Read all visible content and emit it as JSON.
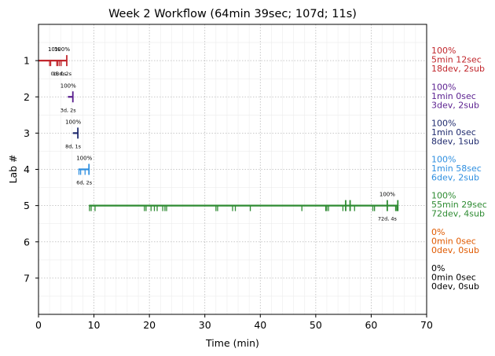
{
  "chart_data": {
    "type": "timeline",
    "title": "Week 2 Workflow (64min 39sec; 107d; 11s)",
    "xlabel": "Time (min)",
    "ylabel": "Lab #",
    "xlim": [
      0,
      70
    ],
    "ylim": [
      8,
      0
    ],
    "xticks": [
      0,
      10,
      20,
      30,
      40,
      50,
      60,
      70
    ],
    "yticks": [
      1,
      2,
      3,
      4,
      5,
      6,
      7
    ],
    "grid": true,
    "labs": [
      {
        "lab": 1,
        "color": "#c1272d",
        "start": 0.0,
        "end": 5.2,
        "pct_label": "100%",
        "pct_label_2": "10%",
        "count_label": "18d, 2s",
        "count_label_2": "0d, 0s",
        "dev_ticks": [
          2.0,
          2.2,
          3.3,
          3.5,
          3.8,
          4.1
        ],
        "sub_ticks": [
          5.1
        ],
        "summary": [
          "100%",
          "5min 12sec",
          "18dev, 2sub"
        ]
      },
      {
        "lab": 2,
        "color": "#5a1f8f",
        "start": 5.3,
        "end": 6.2,
        "pct_label": "100%",
        "count_label": "3d, 2s",
        "dev_ticks": [],
        "sub_ticks": [
          6.2
        ],
        "summary": [
          "100%",
          "1min 0sec",
          "3dev, 2sub"
        ]
      },
      {
        "lab": 3,
        "color": "#1f2a6e",
        "start": 6.2,
        "end": 7.2,
        "pct_label": "100%",
        "count_label": "8d, 1s",
        "dev_ticks": [],
        "sub_ticks": [
          7.1
        ],
        "summary": [
          "100%",
          "1min 0sec",
          "8dev, 1sub"
        ]
      },
      {
        "lab": 4,
        "color": "#2f8fe0",
        "start": 7.2,
        "end": 9.2,
        "pct_label": "100%",
        "count_label": "6d, 2s",
        "dev_ticks": [
          7.3,
          7.6,
          8.4
        ],
        "sub_ticks": [
          9.1
        ],
        "summary": [
          "100%",
          "1min 58sec",
          "6dev, 2sub"
        ]
      },
      {
        "lab": 5,
        "color": "#2e8b32",
        "start": 9.1,
        "end": 64.7,
        "pct_label": "100%",
        "count_label": "72d, 4s",
        "dev_ticks": [
          9.2,
          9.5,
          10.2,
          19.1,
          19.4,
          20.3,
          20.9,
          21.4,
          22.4,
          22.8,
          23.1,
          32.0,
          32.3,
          35.0,
          35.5,
          38.2,
          47.5,
          51.8,
          52.0,
          52.3,
          54.9,
          57.0,
          60.3,
          60.6,
          64.4,
          64.6
        ],
        "sub_ticks": [
          55.4,
          56.2,
          62.9,
          64.8
        ],
        "summary": [
          "100%",
          "55min 29sec",
          "72dev, 4sub"
        ]
      },
      {
        "lab": 6,
        "color": "#e05a00",
        "start": null,
        "end": null,
        "pct_label": "",
        "count_label": "",
        "dev_ticks": [],
        "sub_ticks": [],
        "summary": [
          "0%",
          "0min 0sec",
          "0dev, 0sub"
        ]
      },
      {
        "lab": 7,
        "color": "#000000",
        "start": null,
        "end": null,
        "pct_label": "",
        "count_label": "",
        "dev_ticks": [],
        "sub_ticks": [],
        "summary": [
          "0%",
          "0min 0sec",
          "0dev, 0sub"
        ]
      }
    ]
  }
}
